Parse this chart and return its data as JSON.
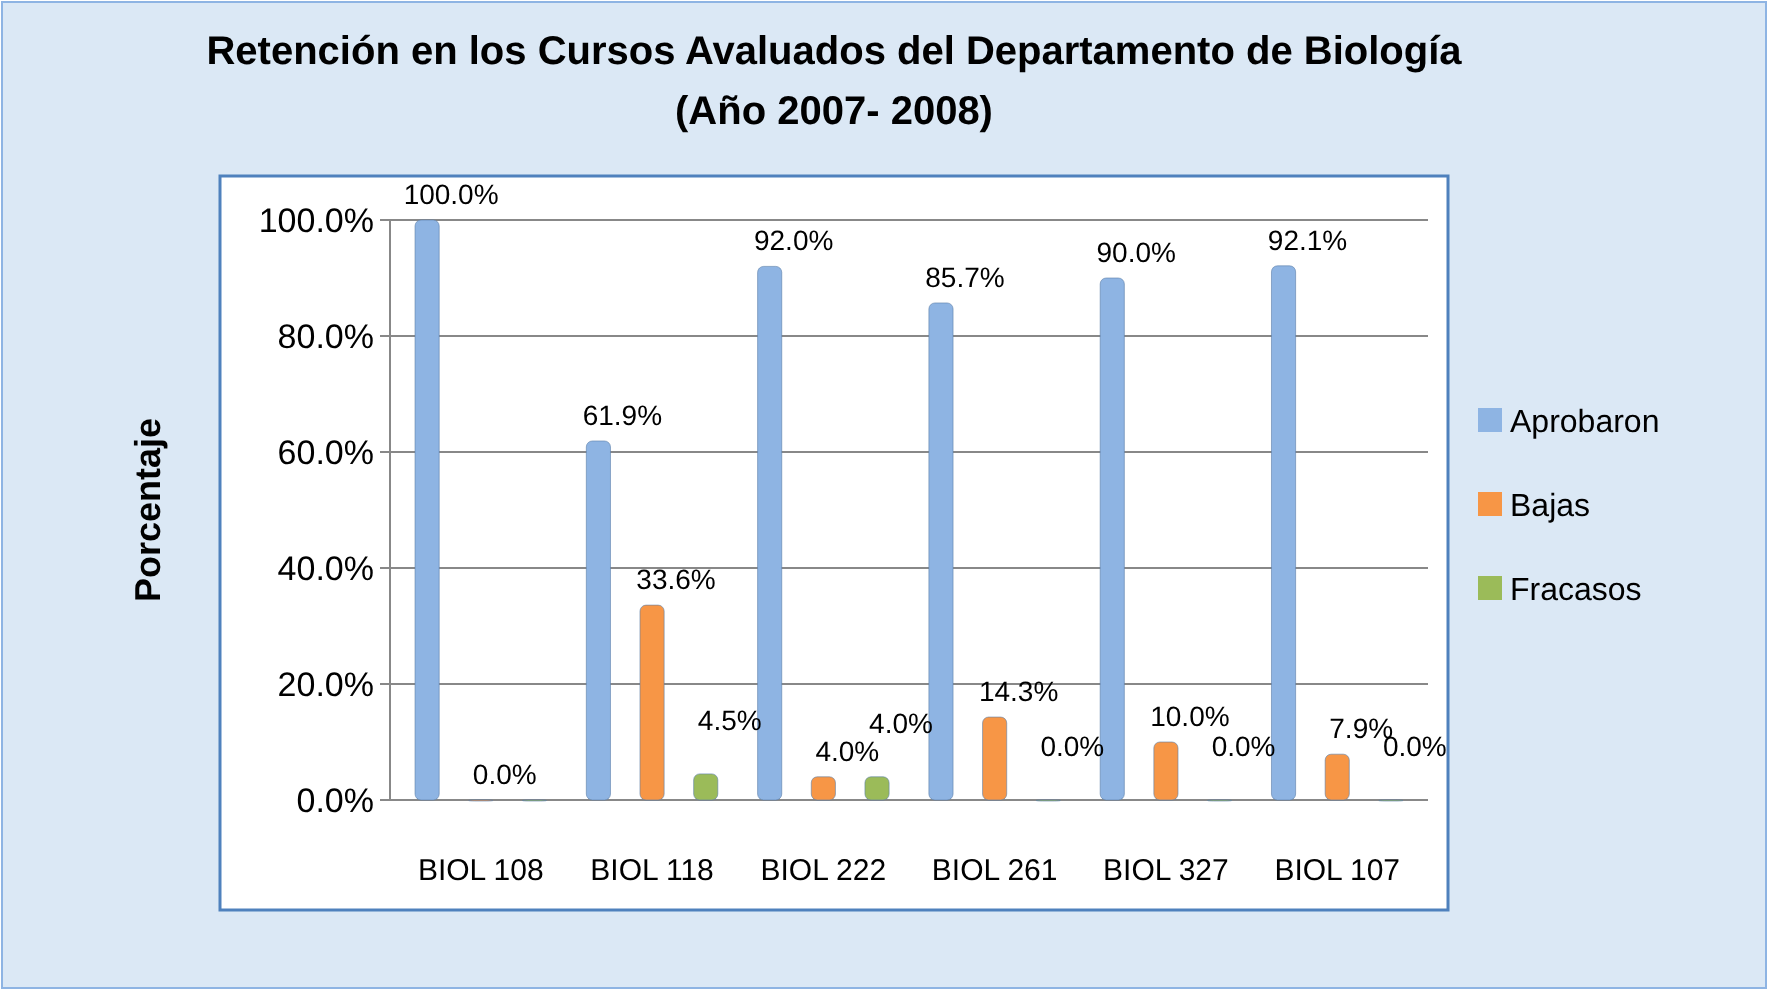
{
  "chart_data": {
    "type": "bar",
    "title": "Retención en los Cursos Avaluados del Departamento de Biología (Año 2007- 2008)",
    "ylabel": "Porcentaje",
    "categories": [
      "BIOL 108",
      "BIOL 118",
      "BIOL 222",
      "BIOL 261",
      "BIOL 327",
      "BIOL 107"
    ],
    "series": [
      {
        "name": "Aprobaron",
        "color": "#8eb4e3",
        "values": [
          100.0,
          61.9,
          92.0,
          85.7,
          90.0,
          92.1
        ],
        "value_labels": [
          "100.0%",
          "61.9%",
          "92.0%",
          "85.7%",
          "90.0%",
          "92.1%"
        ]
      },
      {
        "name": "Bajas",
        "color": "#f79646",
        "values": [
          0.0,
          33.6,
          4.0,
          14.3,
          10.0,
          7.9
        ],
        "value_labels": [
          "0.0%",
          "33.6%",
          "4.0%",
          "14.3%",
          "10.0%",
          "7.9%"
        ]
      },
      {
        "name": "Fracasos",
        "color": "#9bbb59",
        "values": [
          0.0,
          4.5,
          4.0,
          0.0,
          0.0,
          0.0
        ],
        "value_labels": [
          null,
          "4.5%",
          "4.0%",
          "0.0%",
          "0.0%",
          "0.0%"
        ]
      }
    ],
    "ylim": [
      0,
      100
    ],
    "yticks": [
      {
        "value": 0,
        "label": "0.0%"
      },
      {
        "value": 20,
        "label": "20.0%"
      },
      {
        "value": 40,
        "label": "40.0%"
      },
      {
        "value": 60,
        "label": "60.0%"
      },
      {
        "value": 80,
        "label": "80.0%"
      },
      {
        "value": 100,
        "label": "100.0%"
      }
    ],
    "grid": "y",
    "legend": "right"
  }
}
